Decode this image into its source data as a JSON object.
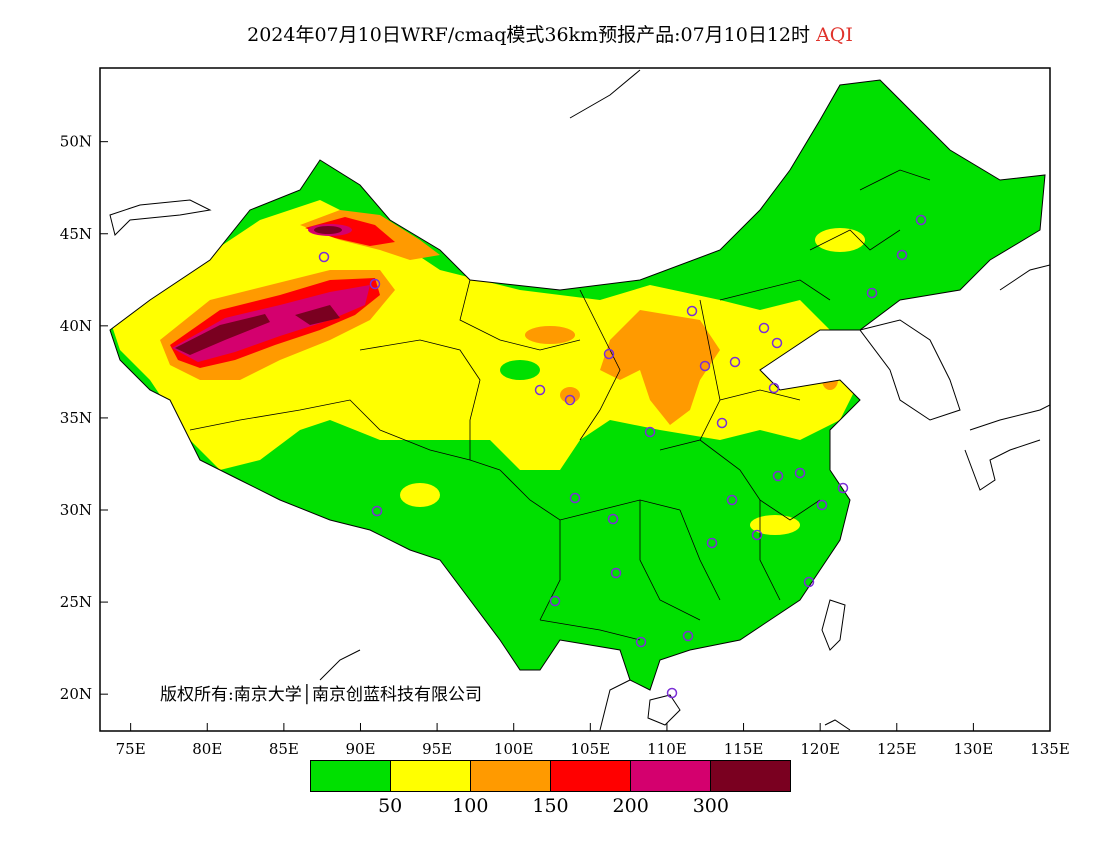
{
  "title": {
    "main": "2024年07月10日WRF/cmaq模式36km预报产品:07月10日12时",
    "variable": "AQI"
  },
  "axes": {
    "lon_ticks": [
      "75E",
      "80E",
      "85E",
      "90E",
      "95E",
      "100E",
      "105E",
      "110E",
      "115E",
      "120E",
      "125E",
      "130E",
      "135E"
    ],
    "lat_ticks": [
      "50N",
      "45N",
      "40N",
      "35N",
      "30N",
      "25N",
      "20N"
    ],
    "lon_range": [
      73,
      135
    ],
    "lat_range": [
      18,
      54
    ]
  },
  "legend": {
    "colors": [
      "#00e000",
      "#ffff00",
      "#ff9a00",
      "#ff0000",
      "#d4006e",
      "#7a0020"
    ],
    "labels": [
      "50",
      "100",
      "150",
      "200",
      "300"
    ]
  },
  "copyright": "版权所有:南京大学│南京创蓝科技有限公司",
  "colors": {
    "good": "#00e000",
    "moderate": "#ffff00",
    "usg": "#ff9a00",
    "unhealthy": "#ff0000",
    "very_unhealthy": "#d4006e",
    "hazardous": "#7a0020",
    "station_marker": "#7b2fd6"
  }
}
